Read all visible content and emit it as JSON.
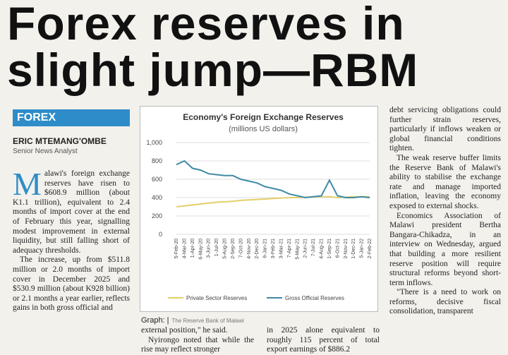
{
  "header": {
    "title_lines": [
      "Forex reserves in",
      "slight jump—RBM"
    ]
  },
  "section": "FOREX",
  "byline": {
    "author": "ERIC MTEMANG'OMBE",
    "role": "Senior News Analyst"
  },
  "column1": {
    "dropcap": "M",
    "paragraphs": [
      "alawi's foreign exchange reserves have risen to $608.9 million (about K1.1 trillion), equivalent to 2.4 months of import cover at the end of February this year, signalling modest improvement in external liquidity, but still falling short of adequacy thresholds.",
      "The increase, up from $511.8 million or 2.0 months of import cover in December 2025 and $530.9 million (about K928 billion) or 2.1 months a year earlier, reflects gains in both gross official and"
    ]
  },
  "column2": {
    "paragraphs": [
      "external position,\" he said.",
      "Nyirongo noted that while the rise may reflect stronger"
    ]
  },
  "column3": {
    "paragraphs": [
      "in 2025 alone equivalent to roughly 115 percent of total export earnings of $886.2"
    ]
  },
  "column4": {
    "paragraphs": [
      "debt servicing obligations could further strain reserves, particularly if inflows weaken or global financial conditions tighten.",
      "The weak reserve buffer limits the Reserve Bank of Malawi's ability to stabilise the exchange rate and manage imported inflation, leaving the economy exposed to external shocks.",
      "Economics Association of Malawi president Bertha Bangara-Chikadza, in an interview on Wednesday, argued that building a more resilient reserve position will require structural reforms beyond short-term inflows.",
      "\"There is a need to work on reforms, decisive fiscal consolidation, transparent"
    ]
  },
  "caption": {
    "label": "Graph: |",
    "source": "The Reserve Bank of Malawi"
  },
  "chart_data": {
    "type": "line",
    "title": "Economy's Foreign Exchange Reserves",
    "subtitle": "(millions US dollars)",
    "categories": [
      "5-Feb-20",
      "4-Mar-20",
      "1-Apr-20",
      "6-May-20",
      "3-Jun-20",
      "1-Jul-20",
      "5-Aug-20",
      "2-Sep-20",
      "7-Oct-20",
      "4-Nov-20",
      "2-Dec-20",
      "6-Jan-21",
      "3-Feb-21",
      "3-Mar-21",
      "7-Apr-21",
      "5-May-21",
      "2-Jun-21",
      "7-Jul-21",
      "4-Aug-21",
      "1-Sep-21",
      "6-Oct-21",
      "3-Nov-21",
      "1-Dec-21",
      "5-Jan-22",
      "2-Feb-22"
    ],
    "series": [
      {
        "name": "Private Sector Reserves",
        "color": "#e3cf6a",
        "values": [
          300,
          310,
          320,
          330,
          340,
          350,
          355,
          360,
          370,
          375,
          380,
          385,
          390,
          395,
          400,
          400,
          405,
          410,
          410,
          410,
          400,
          405,
          410,
          410,
          410
        ]
      },
      {
        "name": "Gross Official Reserves",
        "color": "#3f8aa6",
        "values": [
          760,
          800,
          720,
          700,
          660,
          650,
          640,
          640,
          600,
          580,
          560,
          520,
          500,
          480,
          440,
          420,
          400,
          410,
          420,
          590,
          420,
          400,
          400,
          410,
          400
        ]
      }
    ],
    "ylim": [
      0,
      1000
    ],
    "yticks": [
      0,
      200,
      400,
      600,
      800,
      {
        "value": 1000,
        "label": "1,000"
      }
    ],
    "grid": true,
    "legend": "bottom"
  }
}
